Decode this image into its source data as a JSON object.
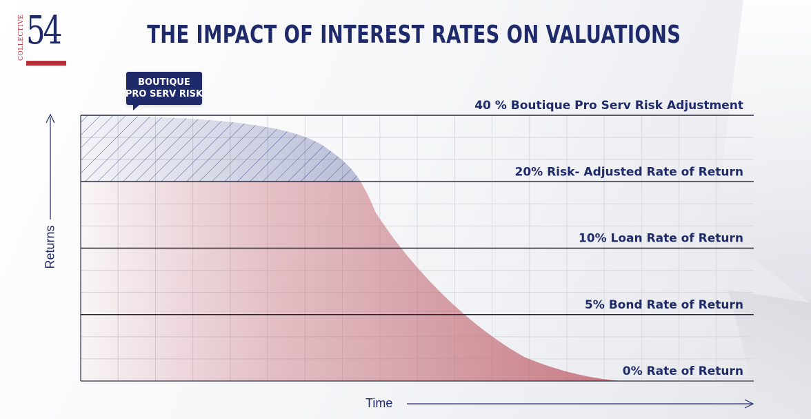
{
  "brand": {
    "logo_number": "54",
    "logo_word": "COLLECTIVE",
    "colors": {
      "navy": "#1f2a6b",
      "red": "#b3323a",
      "curve_fill": "#c97a84",
      "risk_fill": "#4a5699"
    }
  },
  "header": {
    "title": "THE IMPACT OF INTEREST RATES ON VALUATIONS"
  },
  "callout": {
    "line1": "BOUTIQUE",
    "line2": "PRO SERV RISK"
  },
  "chart_data": {
    "type": "area",
    "title": "THE IMPACT OF INTEREST RATES ON VALUATIONS",
    "xlabel": "Time",
    "ylabel": "Returns",
    "ylim": [
      0,
      40
    ],
    "grid": true,
    "levels": [
      {
        "value": 40,
        "label": "40 % Boutique Pro Serv Risk Adjustment"
      },
      {
        "value": 20,
        "label": "20% Risk- Adjusted Rate of Return"
      },
      {
        "value": 10,
        "label": "10% Loan Rate of Return"
      },
      {
        "value": 5,
        "label": "5% Bond Rate of Return"
      },
      {
        "value": 0,
        "label": "0% Rate of Return"
      }
    ],
    "shaded_band": {
      "from": 20,
      "to": 40,
      "label": "BOUTIQUE PRO SERV RISK",
      "pattern": "hatched"
    }
  }
}
